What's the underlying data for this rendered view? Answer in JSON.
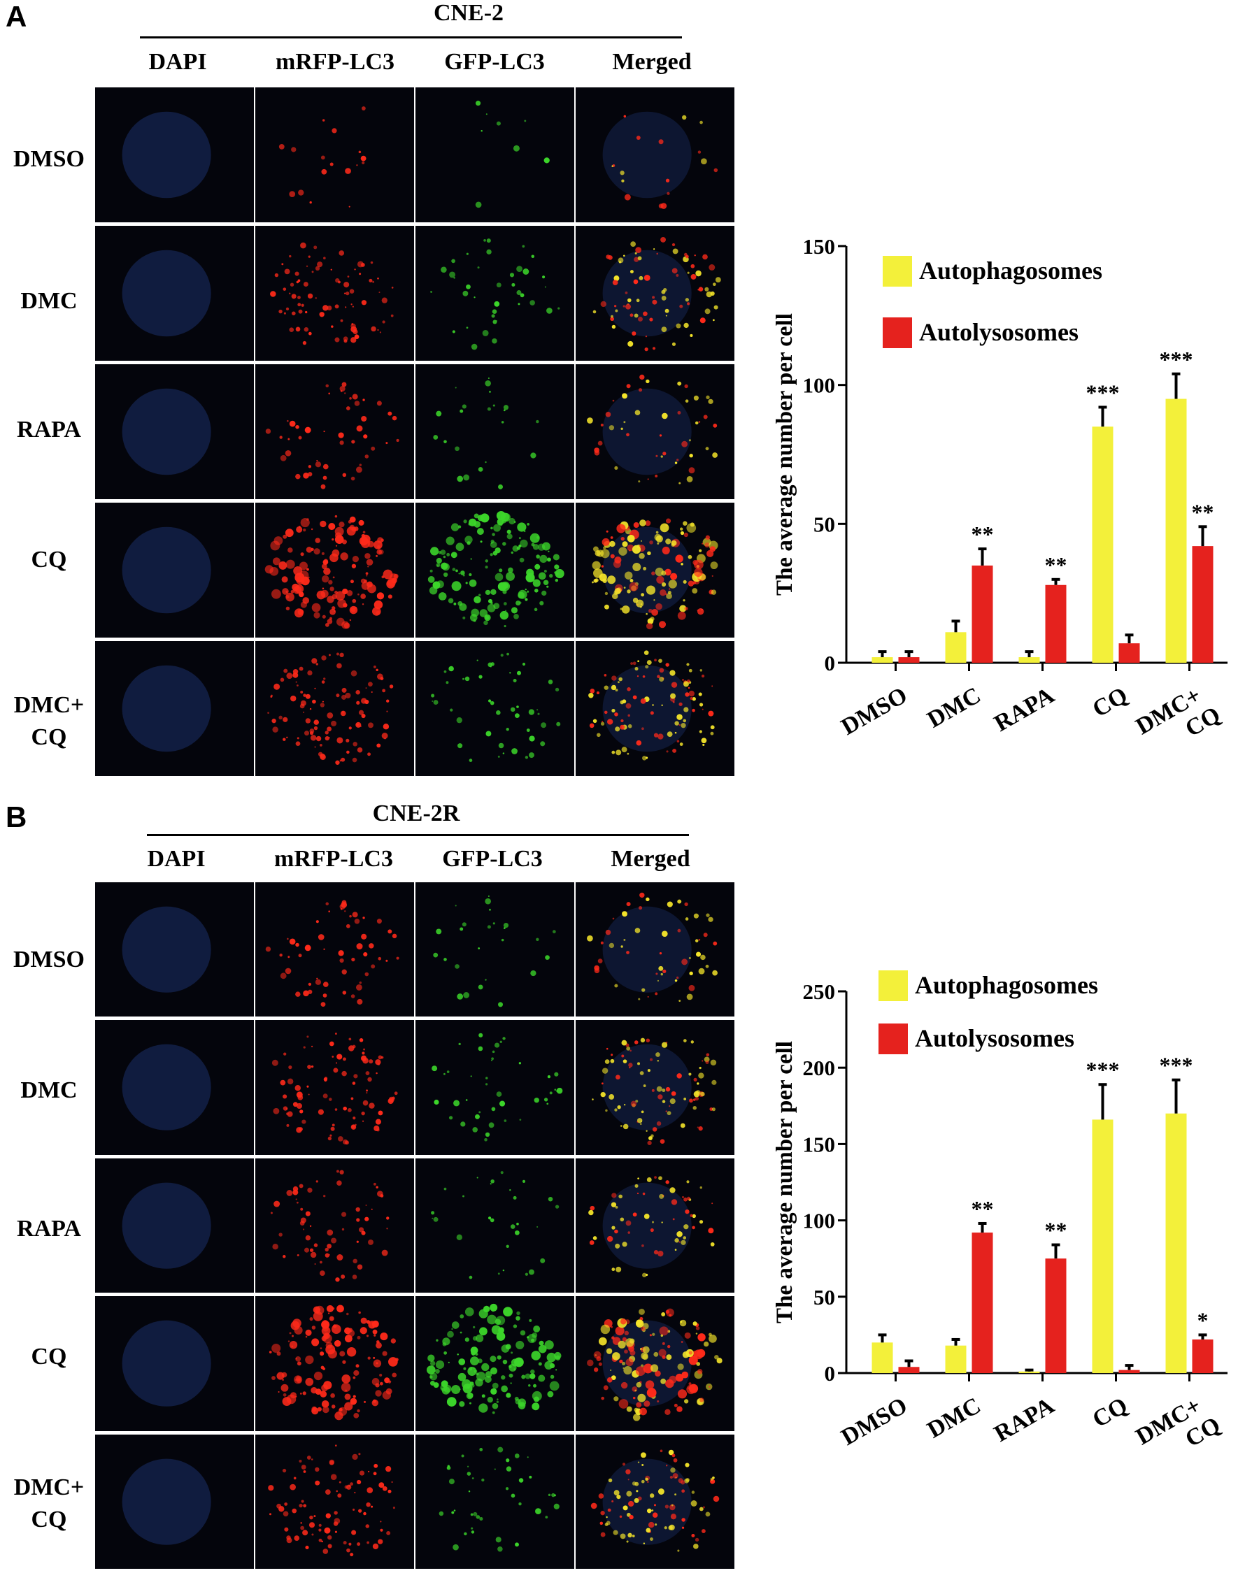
{
  "panels": [
    {
      "letter": "A",
      "cell_line": "CNE-2",
      "channels": [
        "DAPI",
        "mRFP-LC3",
        "GFP-LC3",
        "Merged"
      ],
      "rows": [
        "DMSO",
        "DMC",
        "RAPA",
        "CQ",
        "DMC+\nCQ"
      ]
    },
    {
      "letter": "B",
      "cell_line": "CNE-2R",
      "channels": [
        "DAPI",
        "mRFP-LC3",
        "GFP-LC3",
        "Merged"
      ],
      "rows": [
        "DMSO",
        "DMC",
        "RAPA",
        "CQ",
        "DMC+\nCQ"
      ]
    }
  ],
  "colors": {
    "autophagosomes": "#f3f03a",
    "autolysosomes": "#e5221e",
    "dapi": "#1b2f6a",
    "mrfp": "#ff2a1a",
    "gfp": "#3cd62a",
    "merged": "#f5e52a"
  },
  "chart_data": [
    {
      "type": "bar",
      "ylabel": "The average number per cell",
      "categories": [
        "DMSO",
        "DMC",
        "RAPA",
        "CQ",
        "DMC+\nCQ"
      ],
      "ylim": [
        0,
        150
      ],
      "yticks": [
        0,
        50,
        100,
        150
      ],
      "legend": "top-left",
      "series": [
        {
          "name": "Autophagosomes",
          "values": [
            2,
            11,
            2,
            85,
            95
          ],
          "errors": [
            2,
            4,
            2,
            7,
            9
          ],
          "significance": [
            "",
            "",
            "",
            "***",
            "***"
          ]
        },
        {
          "name": "Autolysosomes",
          "values": [
            2,
            35,
            28,
            7,
            42
          ],
          "errors": [
            2,
            6,
            2,
            3,
            7
          ],
          "significance": [
            "",
            "**",
            "**",
            "",
            "**"
          ]
        }
      ]
    },
    {
      "type": "bar",
      "ylabel": "The average number per cell",
      "categories": [
        "DMSO",
        "DMC",
        "RAPA",
        "CQ",
        "DMC+\nCQ"
      ],
      "ylim": [
        0,
        250
      ],
      "yticks": [
        0,
        50,
        100,
        150,
        200,
        250
      ],
      "legend": "top-left",
      "series": [
        {
          "name": "Autophagosomes",
          "values": [
            20,
            18,
            1,
            166,
            170
          ],
          "errors": [
            5,
            4,
            1,
            23,
            22
          ],
          "significance": [
            "",
            "",
            "",
            "***",
            "***"
          ]
        },
        {
          "name": "Autolysosomes",
          "values": [
            4,
            92,
            75,
            2,
            22
          ],
          "errors": [
            4,
            6,
            9,
            3,
            3
          ],
          "significance": [
            "",
            "**",
            "**",
            "",
            "*"
          ]
        }
      ]
    }
  ]
}
